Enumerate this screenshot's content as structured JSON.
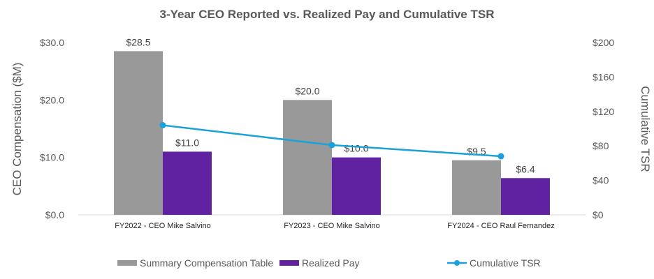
{
  "chart_data": {
    "type": "bar",
    "title": "3-Year CEO Reported vs. Realized Pay and Cumulative TSR",
    "categories": [
      "FY2022 - CEO Mike Salvino",
      "FY2023 - CEO Mike Salvino",
      "FY2024 - CEO Raul Fernandez"
    ],
    "series": [
      {
        "name": "Summary Compensation Table",
        "type": "bar",
        "axis": "left",
        "color": "#999999",
        "values": [
          28.5,
          20.0,
          9.5
        ],
        "labels": [
          "$28.5",
          "$20.0",
          "$9.5"
        ]
      },
      {
        "name": "Realized Pay",
        "type": "bar",
        "axis": "left",
        "color": "#6022A0",
        "values": [
          11.0,
          10.0,
          6.4
        ],
        "labels": [
          "$11.0",
          "$10.0",
          "$6.4"
        ]
      },
      {
        "name": "Cumulative TSR",
        "type": "line",
        "axis": "right",
        "color": "#1BA1D9",
        "values": [
          104,
          81,
          68
        ]
      }
    ],
    "ylabel": "CEO Compensation ($M)",
    "ylim": [
      0,
      30
    ],
    "yticks": [
      "$0.0",
      "$10.0",
      "$20.0",
      "$30.0"
    ],
    "y2label": "Cumulative TSR",
    "y2lim": [
      0,
      200
    ],
    "y2ticks": [
      "$0",
      "$40",
      "$80",
      "$120",
      "$160",
      "$200"
    ],
    "grid": false,
    "legend": "bottom"
  }
}
